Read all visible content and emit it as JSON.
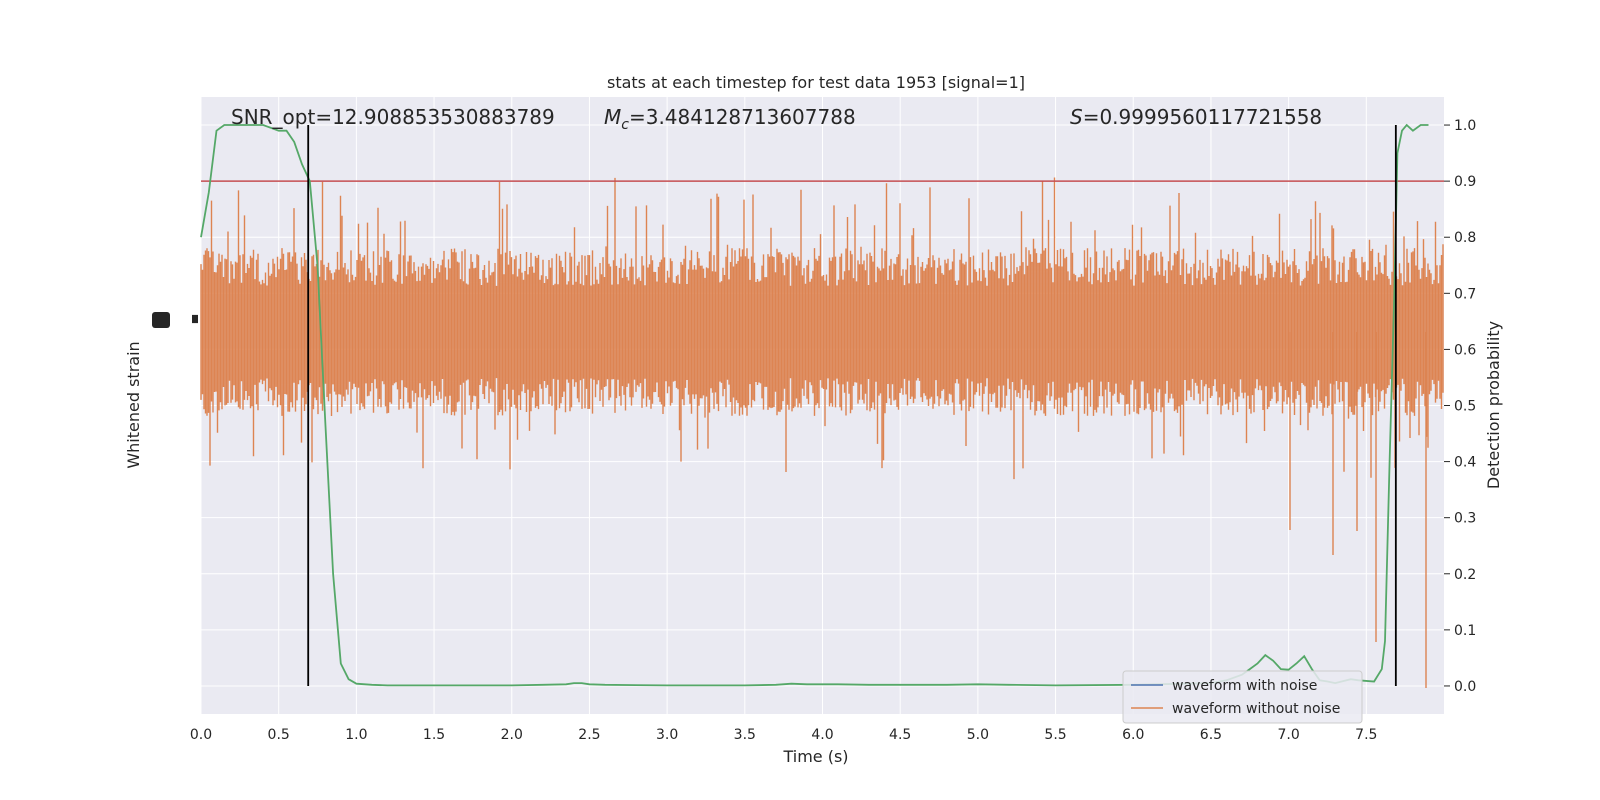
{
  "chart_data": {
    "type": "line",
    "title": "stats at each timestep for test data 1953 [signal=1]",
    "annotations": {
      "snr": "SNR_opt=12.908853530883789",
      "mc_symbol": "M",
      "mc_sub": "c",
      "mc_value": "=3.484128713607788",
      "s_symbol": "S",
      "s_value": "=0.9999560117721558"
    },
    "xlabel": "Time (s)",
    "ylabel_left": "Whitened strain",
    "ylabel_right": "Detection probability",
    "xlim": [
      0.0,
      8.0
    ],
    "ylim_right": [
      -0.05,
      1.05
    ],
    "x_ticks": [
      "0.0",
      "0.5",
      "1.0",
      "1.5",
      "2.0",
      "2.5",
      "3.0",
      "3.5",
      "4.0",
      "4.5",
      "5.0",
      "5.5",
      "6.0",
      "6.5",
      "7.0",
      "7.5"
    ],
    "y_ticks_right": [
      "0.0",
      "0.1",
      "0.2",
      "0.3",
      "0.4",
      "0.5",
      "0.6",
      "0.7",
      "0.8",
      "0.9",
      "1.0"
    ],
    "grid": true,
    "legend_position": "lower-right",
    "threshold": 0.9,
    "vlines": [
      0.69,
      7.69
    ],
    "colors": {
      "background": "#eaeaf2",
      "grid": "#ffffff",
      "noise": "#4c72b0",
      "waveform": "#dd8452",
      "probability": "#55a868",
      "threshold": "#c44e52",
      "vline": "#000000"
    },
    "series": [
      {
        "name": "waveform with noise",
        "color": "#4c72b0",
        "values": []
      },
      {
        "name": "waveform without noise",
        "color": "#dd8452",
        "values": []
      },
      {
        "color": "#55a868",
        "x": [
          0.0,
          0.05,
          0.1,
          0.15,
          0.2,
          0.3,
          0.4,
          0.5,
          0.55,
          0.6,
          0.65,
          0.7,
          0.75,
          0.8,
          0.85,
          0.9,
          0.95,
          1.0,
          1.1,
          1.2,
          1.5,
          2.0,
          2.2,
          2.35,
          2.4,
          2.45,
          2.5,
          2.6,
          3.0,
          3.5,
          3.7,
          3.8,
          3.9,
          4.1,
          4.3,
          4.8,
          5.0,
          5.2,
          5.5,
          6.0,
          6.5,
          6.6,
          6.7,
          6.75,
          6.8,
          6.85,
          6.9,
          6.95,
          7.0,
          7.05,
          7.1,
          7.15,
          7.2,
          7.25,
          7.3,
          7.4,
          7.45,
          7.55,
          7.6,
          7.62,
          7.65,
          7.68,
          7.7,
          7.73,
          7.76,
          7.8,
          7.85,
          7.9
        ],
        "values": [
          0.8,
          0.88,
          0.99,
          1.0,
          1.0,
          1.0,
          1.0,
          0.99,
          0.99,
          0.97,
          0.93,
          0.9,
          0.75,
          0.47,
          0.2,
          0.04,
          0.012,
          0.004,
          0.002,
          0.001,
          0.001,
          0.001,
          0.002,
          0.003,
          0.005,
          0.005,
          0.003,
          0.002,
          0.001,
          0.001,
          0.002,
          0.004,
          0.003,
          0.003,
          0.002,
          0.002,
          0.003,
          0.002,
          0.001,
          0.002,
          0.005,
          0.01,
          0.02,
          0.03,
          0.04,
          0.055,
          0.045,
          0.03,
          0.029,
          0.04,
          0.053,
          0.03,
          0.01,
          0.008,
          0.005,
          0.012,
          0.01,
          0.008,
          0.03,
          0.08,
          0.4,
          0.7,
          0.95,
          0.99,
          1.0,
          0.99,
          1.0,
          1.0
        ]
      }
    ]
  }
}
